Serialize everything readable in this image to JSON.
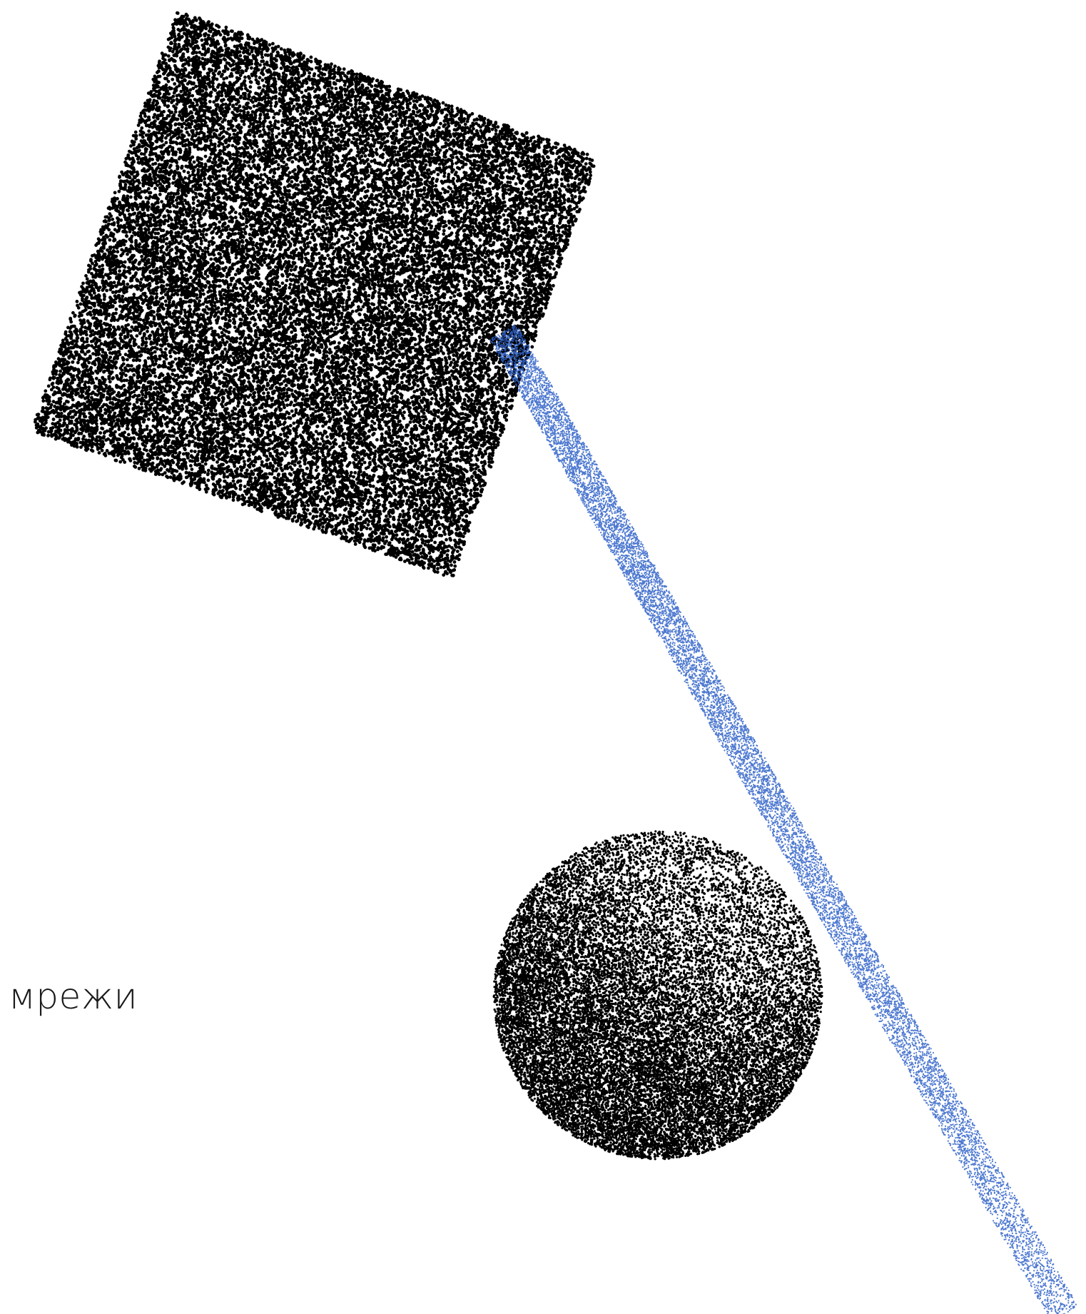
{
  "caption": "мрежи",
  "colors": {
    "ink": "#000000",
    "beam": "#2f62c8",
    "background": "#ffffff"
  },
  "shapes": [
    "stippled-square",
    "stippled-sphere",
    "stippled-beam"
  ]
}
